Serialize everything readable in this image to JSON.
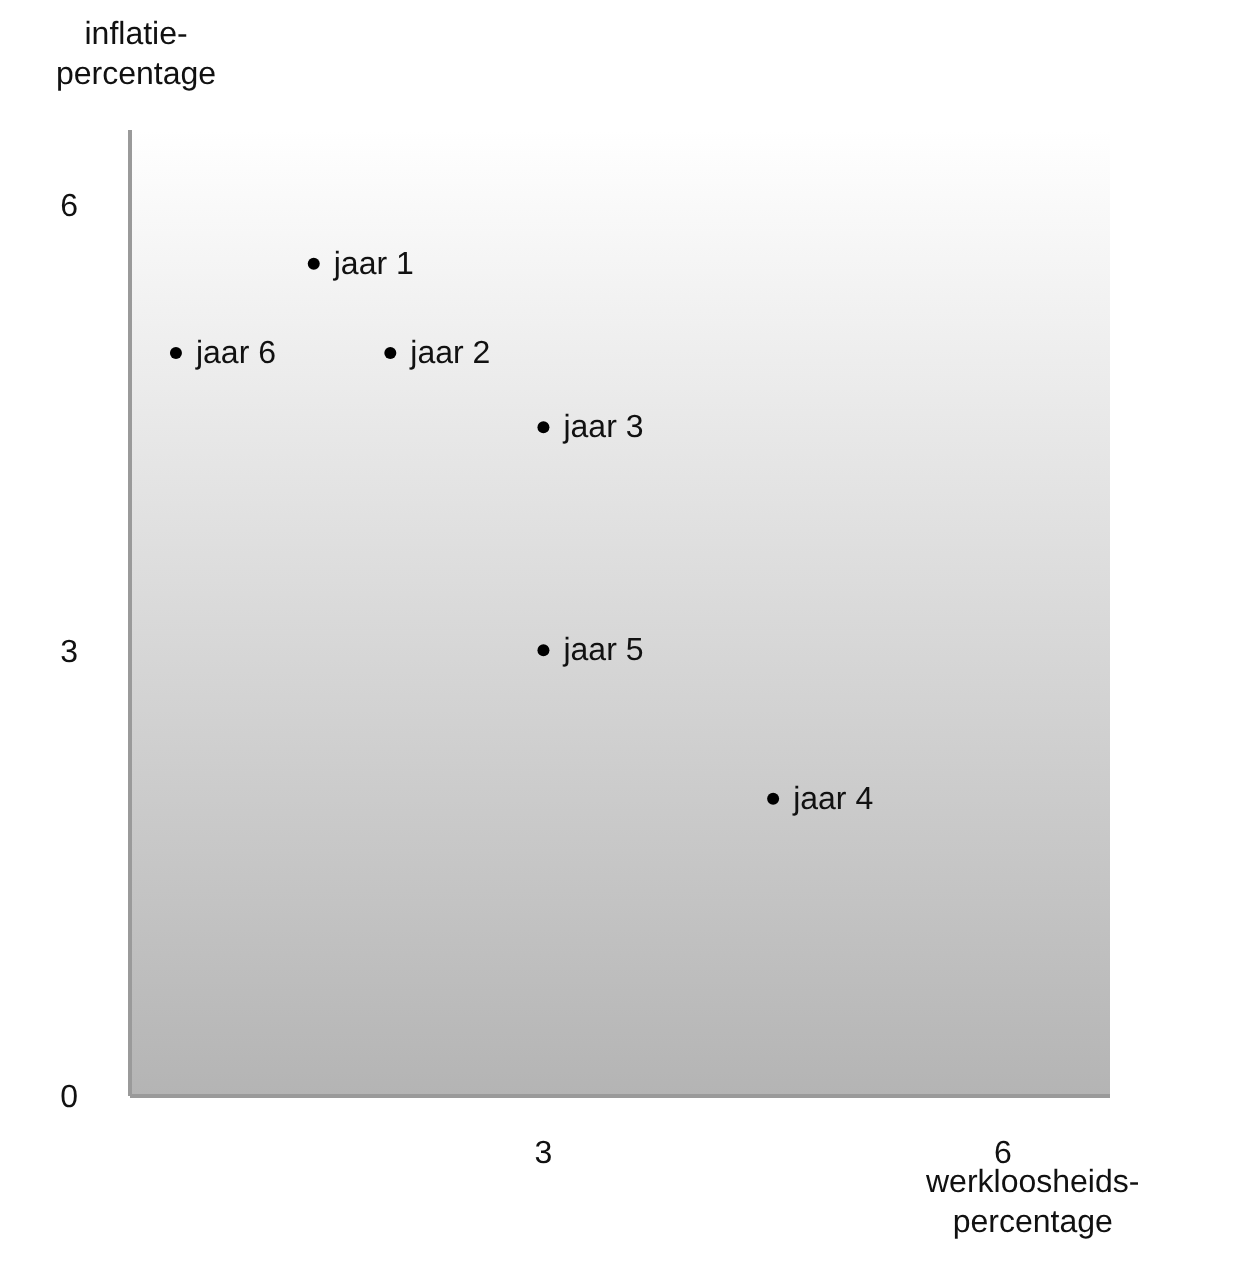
{
  "chart_data": {
    "type": "scatter",
    "xlabel": "werkloosheids-\npercentage",
    "ylabel": "inflatie-\npercentage",
    "x": [
      1.5,
      2,
      3,
      4.5,
      3,
      0.6
    ],
    "values": [
      5.6,
      5,
      4.5,
      2,
      3,
      5
    ],
    "color": "#000000",
    "marker": "circle",
    "xlim": [
      0.3,
      6.7
    ],
    "ylim": [
      0,
      6.5
    ],
    "xticks": [
      3,
      6
    ],
    "yticks": [
      0,
      3,
      6
    ],
    "grid": false,
    "annotations": [
      {
        "text": "jaar 1",
        "x": 1.5,
        "y": 5.6
      },
      {
        "text": "jaar 2",
        "x": 2,
        "y": 5
      },
      {
        "text": "jaar 3",
        "x": 3,
        "y": 4.5
      },
      {
        "text": "jaar 4",
        "x": 4.5,
        "y": 2
      },
      {
        "text": "jaar 5",
        "x": 3,
        "y": 3
      },
      {
        "text": "jaar 6",
        "x": 0.6,
        "y": 5
      }
    ]
  }
}
